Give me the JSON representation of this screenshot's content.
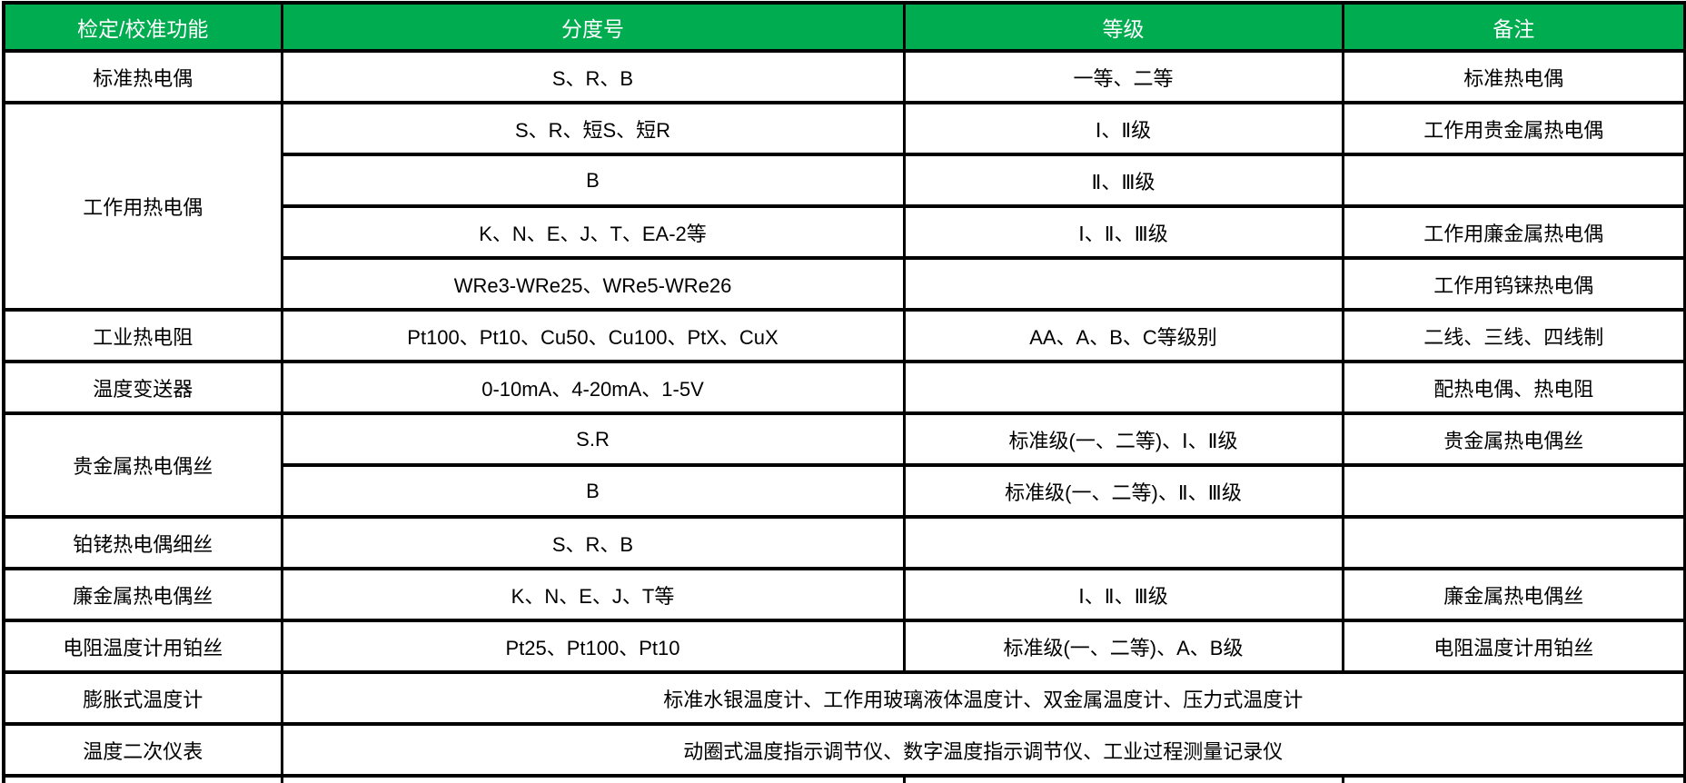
{
  "colors": {
    "header_bg": "#00AC50",
    "header_text": "#ffffff",
    "body_text": "#000000",
    "border": "#000000"
  },
  "table": {
    "headers": {
      "function": "检定/校准功能",
      "division": "分度号",
      "grade": "等级",
      "note": "备注"
    },
    "rows": {
      "standard_tc": {
        "fn": "标准热电偶",
        "div": "S、R、B",
        "grade": "一等、二等",
        "note": "标准热电偶"
      },
      "working_tc": {
        "fn": "工作用热电偶",
        "r1": {
          "div": "S、R、短S、短R",
          "grade": "Ⅰ、Ⅱ级",
          "note": "工作用贵金属热电偶"
        },
        "r2": {
          "div": "B",
          "grade": "Ⅱ、Ⅲ级",
          "note": ""
        },
        "r3": {
          "div": "K、N、E、J、T、EA-2等",
          "grade": "Ⅰ、Ⅱ、Ⅲ级",
          "note": "工作用廉金属热电偶"
        },
        "r4": {
          "div": "WRe3-WRe25、WRe5-WRe26",
          "grade": "",
          "note": "工作用钨铼热电偶"
        }
      },
      "industrial_rtd": {
        "fn": "工业热电阻",
        "div": "Pt100、Pt10、Cu50、Cu100、PtX、CuX",
        "grade": "AA、A、B、C等级别",
        "note": "二线、三线、四线制"
      },
      "transmitter": {
        "fn": "温度变送器",
        "div": "0-10mA、4-20mA、1-5V",
        "grade": "",
        "note": "配热电偶、热电阻"
      },
      "noble_wire": {
        "fn": "贵金属热电偶丝",
        "r1": {
          "div": "S.R",
          "grade": "标准级(一、二等)、Ⅰ、Ⅱ级",
          "note": "贵金属热电偶丝"
        },
        "r2": {
          "div": "B",
          "grade": "标准级(一、二等)、Ⅱ、Ⅲ级",
          "note": ""
        }
      },
      "pt_rh_fine_wire": {
        "fn": "铂铑热电偶细丝",
        "div": "S、R、B",
        "grade": "",
        "note": ""
      },
      "base_metal_wire": {
        "fn": "廉金属热电偶丝",
        "div": "K、N、E、J、T等",
        "grade": "Ⅰ、Ⅱ、Ⅲ级",
        "note": "廉金属热电偶丝"
      },
      "platinum_wire": {
        "fn": "电阻温度计用铂丝",
        "div": "Pt25、Pt100、Pt10",
        "grade": "标准级(一、二等)、A、B级",
        "note": "电阻温度计用铂丝"
      },
      "expansion_thermometer": {
        "fn": "膨胀式温度计",
        "span": "标准水银温度计、工作用玻璃液体温度计、双金属温度计、压力式温度计"
      },
      "secondary_instrument": {
        "fn": "温度二次仪表",
        "span": "动圈式温度指示调节仪、数字温度指示调节仪、工业过程测量记录仪"
      }
    }
  }
}
